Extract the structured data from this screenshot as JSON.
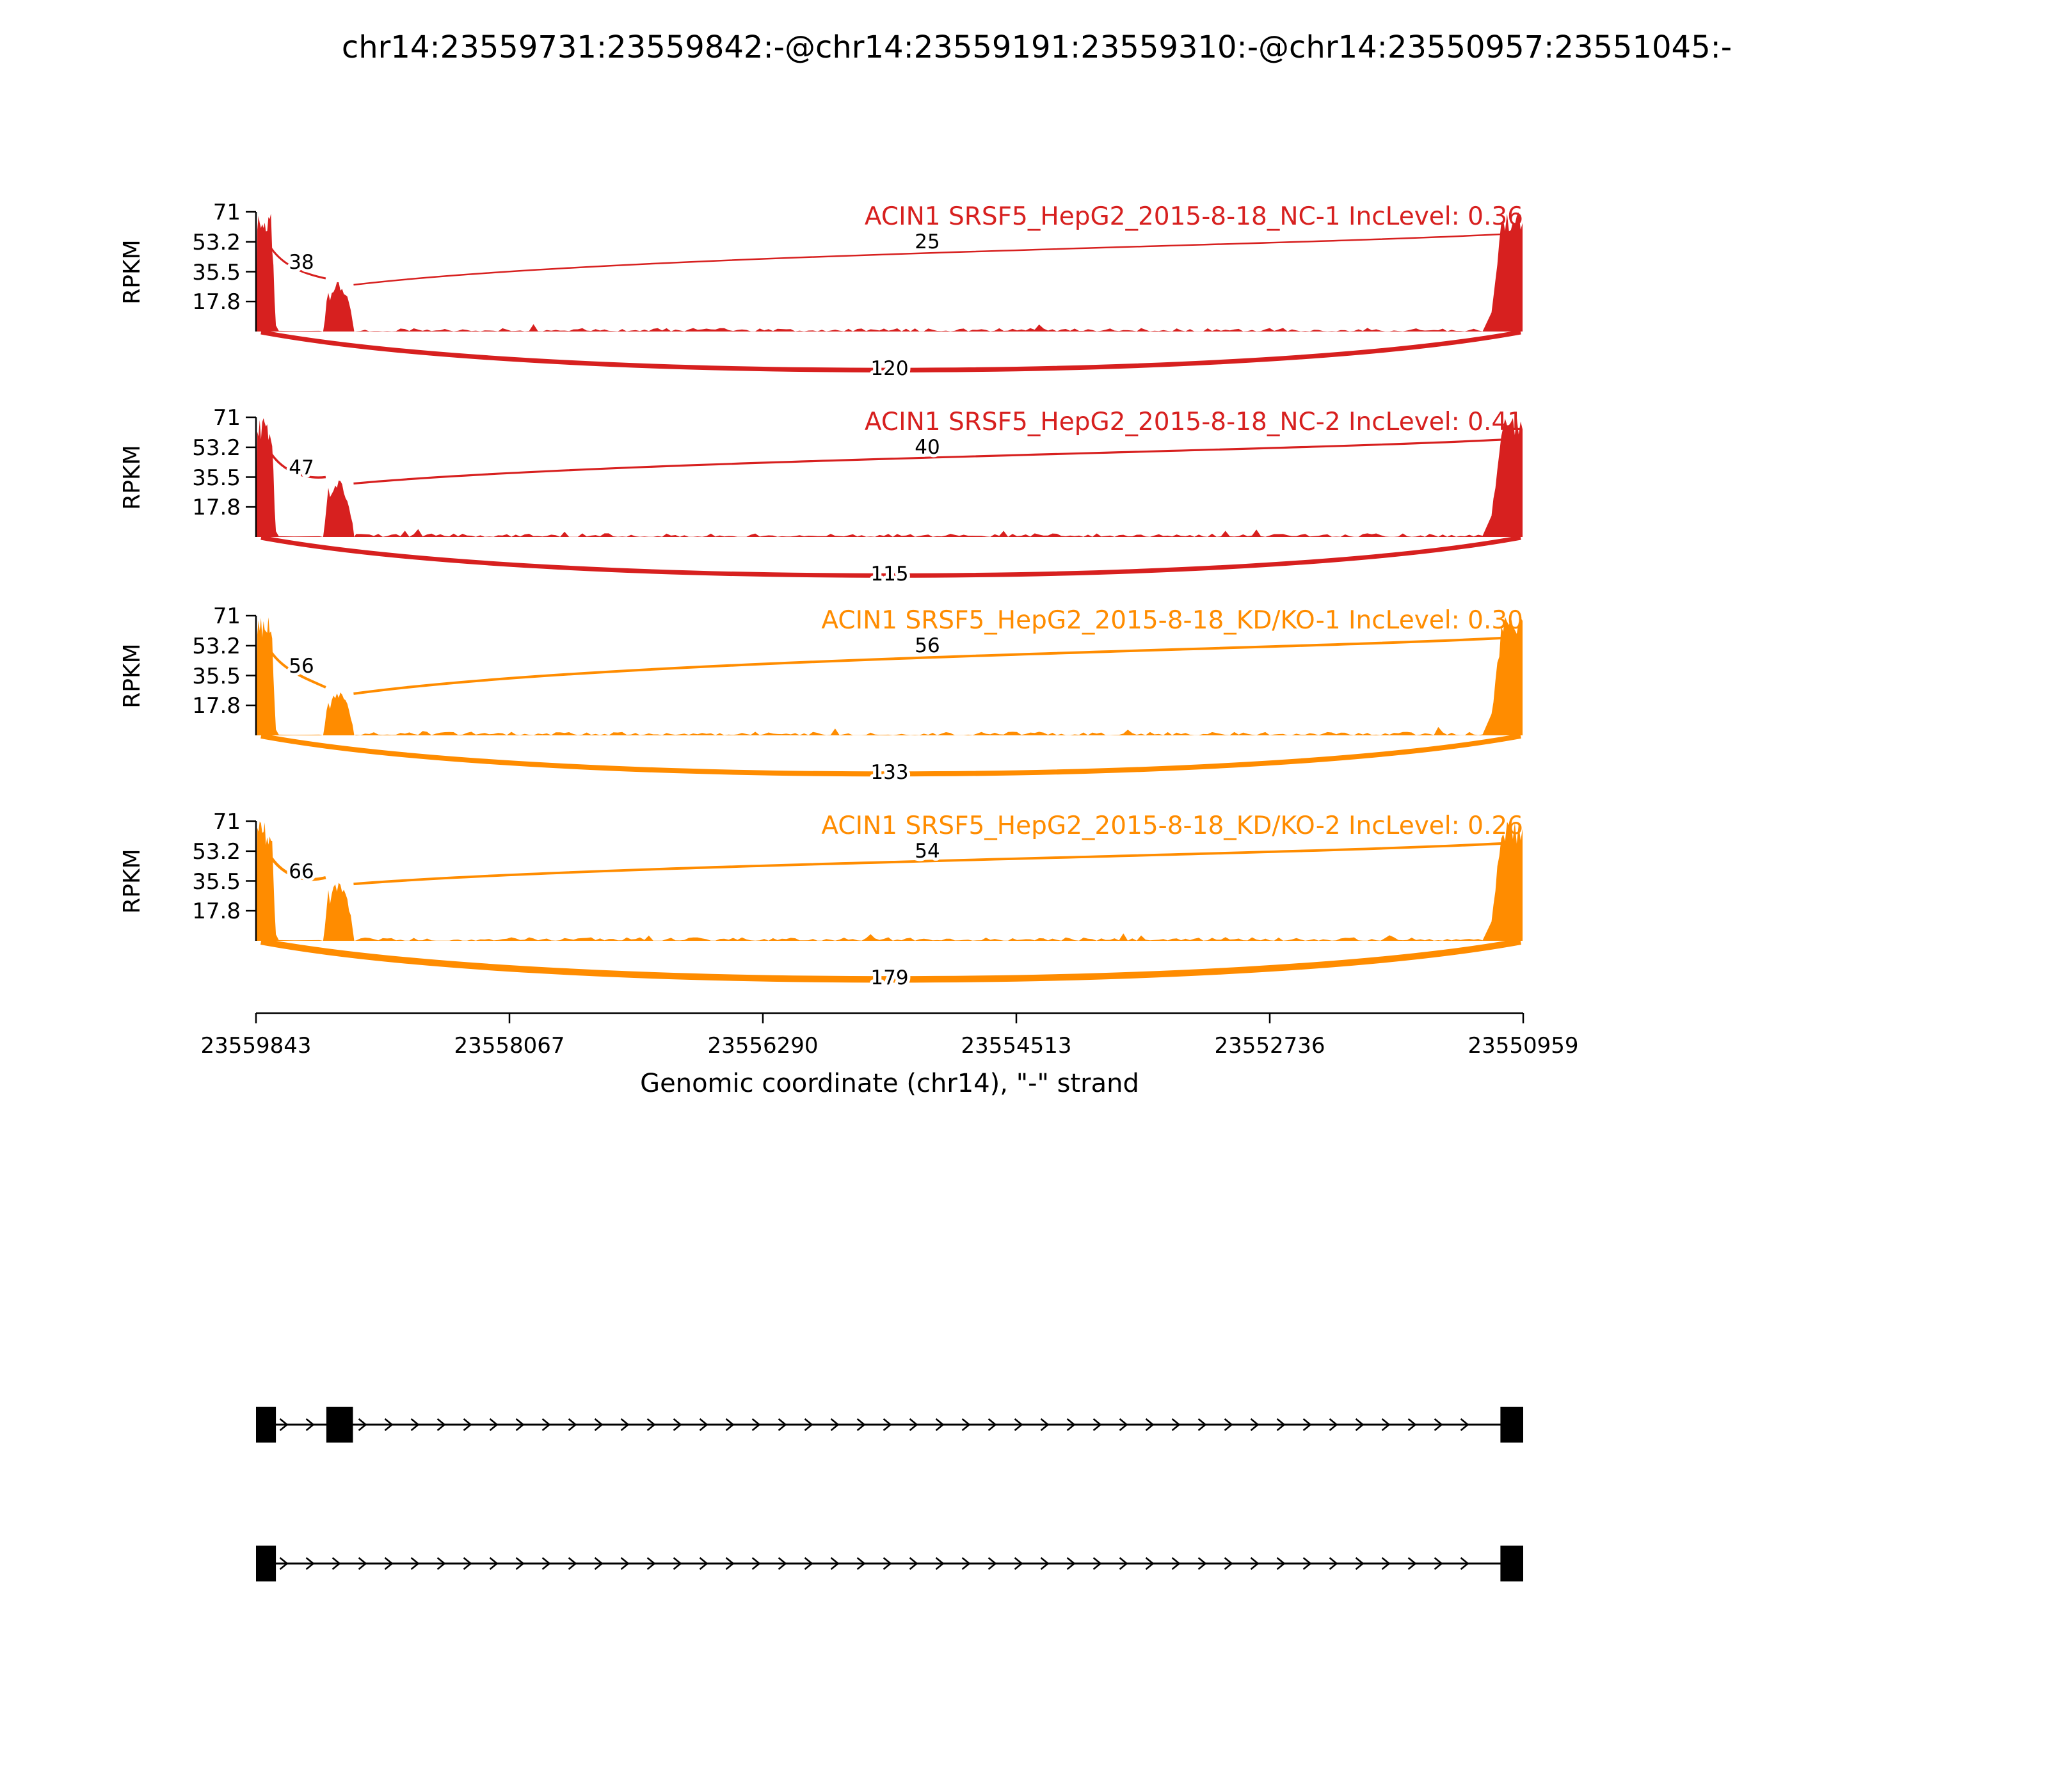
{
  "title": "chr14:23559731:23559842:-@chr14:23559191:23559310:-@chr14:23550957:23551045:-",
  "chart_data": {
    "type": "area",
    "subtype": "rmats-sashimi-plot",
    "title": "chr14:23559731:23559842:-@chr14:23559191:23559310:-@chr14:23550957:23551045:-",
    "xlabel": "Genomic coordinate (chr14), \"-\" strand",
    "ylabel": "RPKM",
    "ylim": [
      0,
      71
    ],
    "y_ticks": [
      "71",
      "53.2",
      "35.5",
      "17.8"
    ],
    "x_tick_labels": [
      "23559843",
      "23558067",
      "23556290",
      "23554513",
      "23552736",
      "23550959"
    ],
    "gene": "ACIN1",
    "tracks": [
      {
        "label": "ACIN1 SRSF5_HepG2_2015-8-18_NC-1 IncLevel: 0.36",
        "sample": "ACIN1 SRSF5_HepG2_2015-8-18_NC-1",
        "inc_level": "0.36",
        "color": "#d7201f",
        "junctions": [
          {
            "name": "exon1-exon2",
            "reads": 38
          },
          {
            "name": "exon2-exon3",
            "reads": 25
          },
          {
            "name": "exon1-exon3-skipping",
            "reads": 120
          }
        ],
        "coverage_peaks_rpkm": {
          "exon1": 71,
          "exon2": 30,
          "exon3": 71,
          "intron_noise": 2
        }
      },
      {
        "label": "ACIN1 SRSF5_HepG2_2015-8-18_NC-2 IncLevel: 0.41",
        "sample": "ACIN1 SRSF5_HepG2_2015-8-18_NC-2",
        "inc_level": "0.41",
        "color": "#d7201f",
        "junctions": [
          {
            "name": "exon1-exon2",
            "reads": 47
          },
          {
            "name": "exon2-exon3",
            "reads": 40
          },
          {
            "name": "exon1-exon3-skipping",
            "reads": 115
          }
        ],
        "coverage_peaks_rpkm": {
          "exon1": 71,
          "exon2": 34,
          "exon3": 71,
          "intron_noise": 2
        }
      },
      {
        "label": "ACIN1 SRSF5_HepG2_2015-8-18_KD/KO-1 IncLevel: 0.30",
        "sample": "ACIN1 SRSF5_HepG2_2015-8-18_KD/KO-1",
        "inc_level": "0.30",
        "color": "#ff8c00",
        "junctions": [
          {
            "name": "exon1-exon2",
            "reads": 56
          },
          {
            "name": "exon2-exon3",
            "reads": 56
          },
          {
            "name": "exon1-exon3-skipping",
            "reads": 133
          }
        ],
        "coverage_peaks_rpkm": {
          "exon1": 71,
          "exon2": 27,
          "exon3": 71,
          "intron_noise": 2
        }
      },
      {
        "label": "ACIN1 SRSF5_HepG2_2015-8-18_KD/KO-2 IncLevel: 0.26",
        "sample": "ACIN1 SRSF5_HepG2_2015-8-18_KD/KO-2",
        "inc_level": "0.26",
        "color": "#ff8c00",
        "junctions": [
          {
            "name": "exon1-exon2",
            "reads": 66
          },
          {
            "name": "exon2-exon3",
            "reads": 54
          },
          {
            "name": "exon1-exon3-skipping",
            "reads": 179
          }
        ],
        "coverage_peaks_rpkm": {
          "exon1": 71,
          "exon2": 36,
          "exon3": 71,
          "intron_noise": 2
        }
      }
    ],
    "isoforms": [
      {
        "name": "inclusion",
        "exons_frac": [
          [
            0.0,
            0.0157
          ],
          [
            0.0555,
            0.0765
          ],
          [
            0.982,
            1.0
          ]
        ]
      },
      {
        "name": "skipping",
        "exons_frac": [
          [
            0.0,
            0.0157
          ],
          [
            0.982,
            1.0
          ]
        ]
      }
    ]
  }
}
